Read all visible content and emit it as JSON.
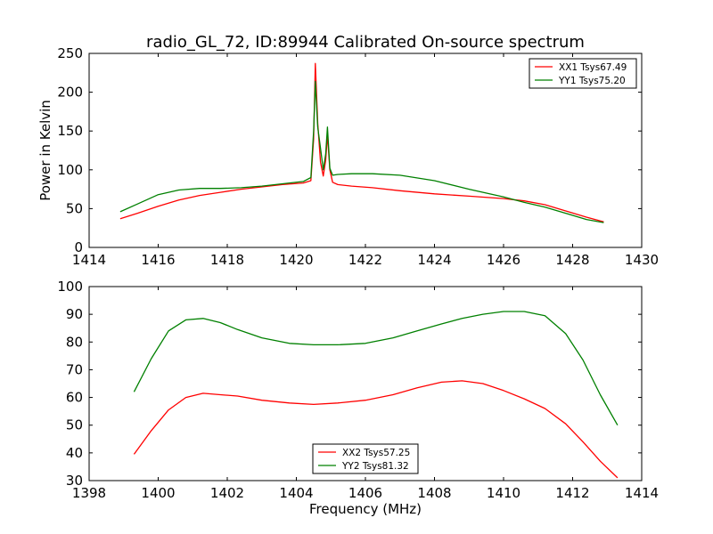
{
  "figure": {
    "title": "radio_GL_72, ID:89944 Calibrated On-source spectrum",
    "xlabel": "Frequency (MHz)"
  },
  "chart_data": [
    {
      "type": "line",
      "ylabel": "Power in Kelvin",
      "xlim": [
        1414,
        1430
      ],
      "ylim": [
        0,
        250
      ],
      "xticks": [
        "1414",
        "1416",
        "1418",
        "1420",
        "1422",
        "1424",
        "1426",
        "1428",
        "1430"
      ],
      "yticks": [
        "0",
        "50",
        "100",
        "150",
        "200",
        "250"
      ],
      "legend_position": "top-right",
      "series": [
        {
          "name": "XX1 Tsys67.49",
          "color": "#ff0000",
          "x": [
            1414.9,
            1415.4,
            1416.0,
            1416.6,
            1417.2,
            1417.8,
            1418.4,
            1419.0,
            1419.6,
            1420.2,
            1420.42,
            1420.5,
            1420.55,
            1420.62,
            1420.7,
            1420.78,
            1420.85,
            1420.9,
            1420.97,
            1421.05,
            1421.2,
            1421.6,
            1422.2,
            1423.0,
            1424.0,
            1425.0,
            1426.0,
            1426.6,
            1427.2,
            1427.8,
            1428.4,
            1428.9
          ],
          "values": [
            37,
            44,
            53,
            61,
            67,
            71,
            75,
            78,
            81,
            83,
            86,
            140,
            237,
            160,
            110,
            92,
            112,
            145,
            100,
            84,
            81,
            79,
            77,
            73,
            69,
            66,
            63,
            60,
            55,
            47,
            39,
            33
          ]
        },
        {
          "name": "YY1 Tsys75.20",
          "color": "#008000",
          "x": [
            1414.9,
            1415.4,
            1416.0,
            1416.6,
            1417.2,
            1417.8,
            1418.4,
            1419.0,
            1419.6,
            1420.2,
            1420.42,
            1420.5,
            1420.55,
            1420.62,
            1420.7,
            1420.78,
            1420.85,
            1420.9,
            1420.97,
            1421.05,
            1421.2,
            1421.6,
            1422.2,
            1423.0,
            1424.0,
            1425.0,
            1426.0,
            1426.6,
            1427.2,
            1427.8,
            1428.4,
            1428.9
          ],
          "values": [
            46,
            56,
            68,
            74,
            76,
            76,
            77,
            79,
            82,
            85,
            90,
            150,
            214,
            155,
            128,
            100,
            120,
            155,
            102,
            93,
            94,
            95,
            95,
            93,
            86,
            75,
            65,
            58,
            52,
            44,
            36,
            32
          ]
        }
      ]
    },
    {
      "type": "line",
      "ylabel": "",
      "xlim": [
        1398,
        1414
      ],
      "ylim": [
        30,
        100
      ],
      "xticks": [
        "1398",
        "1400",
        "1402",
        "1404",
        "1406",
        "1408",
        "1410",
        "1412",
        "1414"
      ],
      "yticks": [
        "30",
        "40",
        "50",
        "60",
        "70",
        "80",
        "90",
        "100"
      ],
      "legend_position": "bottom-center",
      "series": [
        {
          "name": "XX2 Tsys57.25",
          "color": "#ff0000",
          "x": [
            1399.3,
            1399.8,
            1400.3,
            1400.8,
            1401.3,
            1401.8,
            1402.3,
            1403.0,
            1403.8,
            1404.5,
            1405.2,
            1406.0,
            1406.8,
            1407.5,
            1408.2,
            1408.8,
            1409.4,
            1410.0,
            1410.6,
            1411.2,
            1411.8,
            1412.3,
            1412.8,
            1413.3
          ],
          "values": [
            39.5,
            48,
            55.5,
            60,
            61.5,
            61,
            60.5,
            59,
            58,
            57.5,
            58,
            59,
            61,
            63.5,
            65.5,
            66,
            65,
            62.5,
            59.5,
            56,
            50.5,
            44,
            37,
            31
          ]
        },
        {
          "name": "YY2 Tsys81.32",
          "color": "#008000",
          "x": [
            1399.3,
            1399.8,
            1400.3,
            1400.8,
            1401.3,
            1401.8,
            1402.3,
            1403.0,
            1403.8,
            1404.5,
            1405.2,
            1406.0,
            1406.8,
            1407.5,
            1408.2,
            1408.8,
            1409.4,
            1410.0,
            1410.6,
            1411.2,
            1411.8,
            1412.3,
            1412.8,
            1413.3
          ],
          "values": [
            62,
            74,
            84,
            88,
            88.5,
            87,
            84.5,
            81.5,
            79.5,
            79,
            79,
            79.5,
            81.5,
            84,
            86.5,
            88.5,
            90,
            91,
            91,
            89.5,
            83,
            73.5,
            61,
            50
          ]
        }
      ]
    }
  ]
}
